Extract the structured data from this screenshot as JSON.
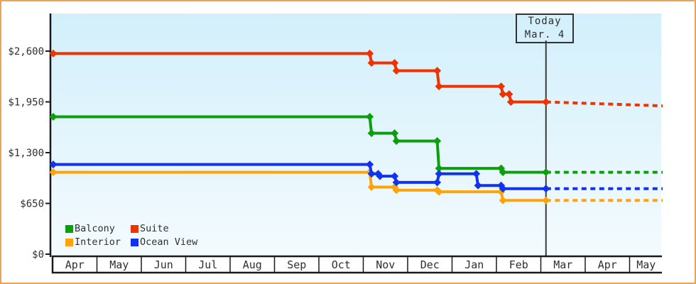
{
  "chart_data": {
    "type": "line",
    "variant": "step-price-history",
    "title": "",
    "y_axis": {
      "tick_labels": [
        "$2,600",
        "$1,950",
        "$1,300",
        "$650",
        "$0"
      ],
      "tick_values": [
        2600,
        1950,
        1300,
        650,
        0
      ],
      "min": 0,
      "max": 2860
    },
    "x_axis": {
      "months": [
        "Apr",
        "May",
        "Jun",
        "Jul",
        "Aug",
        "Sep",
        "Oct",
        "Nov",
        "Dec",
        "Jan",
        "Feb",
        "Mar",
        "Apr",
        "May"
      ]
    },
    "today": {
      "line1": "Today",
      "line2": "Mar. 4",
      "t": 11.1
    },
    "series": [
      {
        "name": "Balcony",
        "color": "#0ba00b",
        "points": [
          [
            0,
            1759
          ],
          [
            7.13,
            1759
          ],
          [
            7.17,
            1549
          ],
          [
            7.69,
            1549
          ],
          [
            7.73,
            1449
          ],
          [
            8.65,
            1449
          ],
          [
            8.69,
            1099
          ],
          [
            10.09,
            1099
          ],
          [
            10.13,
            1049
          ],
          [
            11.1,
            1049
          ]
        ],
        "forecast": [
          [
            11.1,
            1049
          ],
          [
            13.73,
            1049
          ]
        ]
      },
      {
        "name": "Suite",
        "color": "#ee3300",
        "points": [
          [
            0,
            2569
          ],
          [
            7.13,
            2569
          ],
          [
            7.17,
            2449
          ],
          [
            7.69,
            2449
          ],
          [
            7.73,
            2349
          ],
          [
            8.65,
            2349
          ],
          [
            8.69,
            2149
          ],
          [
            10.09,
            2149
          ],
          [
            10.13,
            2049
          ],
          [
            10.27,
            2049
          ],
          [
            10.31,
            1949
          ],
          [
            11.1,
            1949
          ]
        ],
        "forecast": [
          [
            11.1,
            1949
          ],
          [
            13.73,
            1899
          ]
        ]
      },
      {
        "name": "Interior",
        "color": "#ffa408",
        "points": [
          [
            0,
            1049
          ],
          [
            7.13,
            1049
          ],
          [
            7.17,
            859
          ],
          [
            7.69,
            859
          ],
          [
            7.73,
            819
          ],
          [
            8.65,
            819
          ],
          [
            8.69,
            799
          ],
          [
            10.09,
            799
          ],
          [
            10.13,
            689
          ],
          [
            11.1,
            689
          ]
        ],
        "forecast": [
          [
            11.1,
            689
          ],
          [
            13.73,
            689
          ]
        ]
      },
      {
        "name": "Ocean View",
        "color": "#1133ee",
        "points": [
          [
            0,
            1149
          ],
          [
            7.13,
            1149
          ],
          [
            7.17,
            1029
          ],
          [
            7.32,
            1029
          ],
          [
            7.36,
            999
          ],
          [
            7.69,
            999
          ],
          [
            7.73,
            919
          ],
          [
            8.65,
            919
          ],
          [
            8.69,
            1029
          ],
          [
            9.53,
            1029
          ],
          [
            9.57,
            879
          ],
          [
            10.09,
            879
          ],
          [
            10.13,
            839
          ],
          [
            11.1,
            839
          ]
        ],
        "forecast": [
          [
            11.1,
            839
          ],
          [
            13.73,
            839
          ]
        ]
      }
    ],
    "legend": [
      {
        "label": "Balcony",
        "color": "#0ba00b"
      },
      {
        "label": "Suite",
        "color": "#ee3300"
      },
      {
        "label": "Interior",
        "color": "#ffa408"
      },
      {
        "label": "Ocean View",
        "color": "#1133ee"
      }
    ],
    "layout_hints": {
      "grid": false,
      "legend_position": "bottom-left-inside",
      "forecast_style": "dotted"
    }
  },
  "frame": {
    "border_color": "#eba356",
    "plot_top_color": "#d2effb",
    "plot_bottom_color": "#f4fbfe"
  }
}
